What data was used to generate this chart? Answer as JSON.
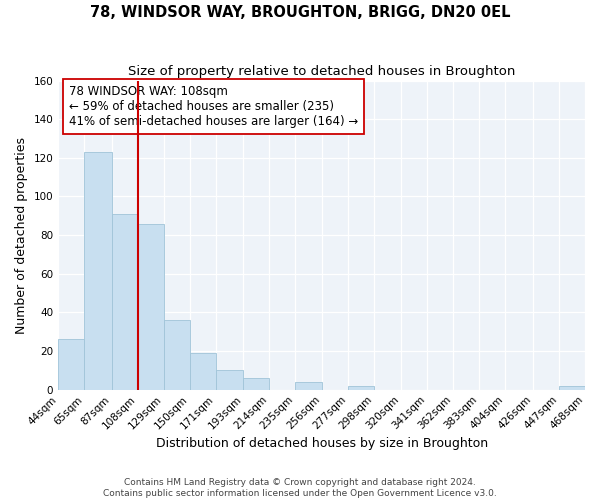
{
  "title": "78, WINDSOR WAY, BROUGHTON, BRIGG, DN20 0EL",
  "subtitle": "Size of property relative to detached houses in Broughton",
  "xlabel": "Distribution of detached houses by size in Broughton",
  "ylabel": "Number of detached properties",
  "bin_edges": [
    44,
    65,
    87,
    108,
    129,
    150,
    171,
    193,
    214,
    235,
    256,
    277,
    298,
    320,
    341,
    362,
    383,
    404,
    426,
    447,
    468
  ],
  "counts": [
    26,
    123,
    91,
    86,
    36,
    19,
    10,
    6,
    0,
    4,
    0,
    2,
    0,
    0,
    0,
    0,
    0,
    0,
    0,
    2
  ],
  "bar_color": "#c8dff0",
  "bar_edge_color": "#a0c4d8",
  "vline_x": 108,
  "vline_color": "#cc0000",
  "ylim": [
    0,
    160
  ],
  "annotation_text": "78 WINDSOR WAY: 108sqm\n← 59% of detached houses are smaller (235)\n41% of semi-detached houses are larger (164) →",
  "footnote1": "Contains HM Land Registry data © Crown copyright and database right 2024.",
  "footnote2": "Contains public sector information licensed under the Open Government Licence v3.0.",
  "tick_labels": [
    "44sqm",
    "65sqm",
    "87sqm",
    "108sqm",
    "129sqm",
    "150sqm",
    "171sqm",
    "193sqm",
    "214sqm",
    "235sqm",
    "256sqm",
    "277sqm",
    "298sqm",
    "320sqm",
    "341sqm",
    "362sqm",
    "383sqm",
    "404sqm",
    "426sqm",
    "447sqm",
    "468sqm"
  ],
  "annotation_box_color": "#ffffff",
  "annotation_box_edge": "#cc0000",
  "title_fontsize": 10.5,
  "subtitle_fontsize": 9.5,
  "axis_label_fontsize": 9,
  "tick_fontsize": 7.5,
  "annotation_fontsize": 8.5,
  "footnote_fontsize": 6.5,
  "plot_bg_color": "#eef3f9",
  "fig_bg_color": "#ffffff",
  "grid_color": "#ffffff",
  "yticks": [
    0,
    20,
    40,
    60,
    80,
    100,
    120,
    140,
    160
  ]
}
